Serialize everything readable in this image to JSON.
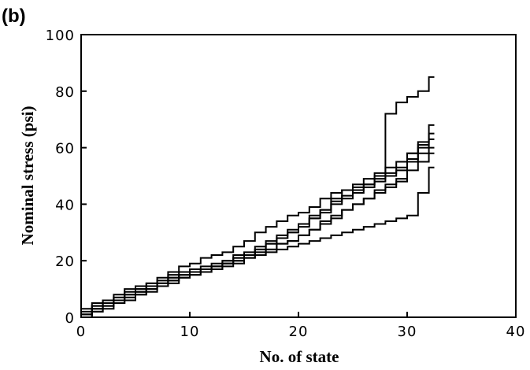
{
  "panel_label": "(b)",
  "chart_data": {
    "type": "line",
    "title": "",
    "xlabel": "No. of state",
    "ylabel": "Nominal stress (psi)",
    "xlim": [
      0,
      40
    ],
    "ylim": [
      0,
      100
    ],
    "xticks": [
      0,
      10,
      20,
      30,
      40
    ],
    "yticks": [
      0,
      20,
      40,
      60,
      80,
      100
    ],
    "grid": false,
    "legend": "none",
    "step": true,
    "x": [
      0,
      1,
      2,
      3,
      4,
      5,
      6,
      7,
      8,
      9,
      10,
      11,
      12,
      13,
      14,
      15,
      16,
      17,
      18,
      19,
      20,
      21,
      22,
      23,
      24,
      25,
      26,
      27,
      28,
      29,
      30,
      31,
      32
    ],
    "series": [
      {
        "values": [
          0,
          5,
          6,
          8,
          10,
          11,
          12,
          14,
          16,
          18,
          19,
          21,
          22,
          23,
          25,
          27,
          30,
          32,
          34,
          36,
          37,
          39,
          42,
          44,
          45,
          46,
          47,
          50,
          72,
          76,
          78,
          80,
          85
        ]
      },
      {
        "values": [
          3,
          4,
          5,
          7,
          8,
          10,
          11,
          12,
          14,
          15,
          16,
          17,
          18,
          20,
          21,
          22,
          23,
          24,
          26,
          27,
          29,
          31,
          34,
          36,
          38,
          40,
          42,
          44,
          46,
          48,
          58,
          62,
          68
        ]
      },
      {
        "values": [
          1,
          3,
          5,
          6,
          8,
          9,
          11,
          12,
          14,
          15,
          16,
          17,
          18,
          19,
          21,
          22,
          24,
          26,
          28,
          30,
          33,
          36,
          38,
          41,
          43,
          45,
          47,
          49,
          51,
          53,
          56,
          60,
          65
        ]
      },
      {
        "values": [
          2,
          4,
          6,
          7,
          9,
          10,
          12,
          13,
          15,
          16,
          17,
          18,
          19,
          20,
          22,
          23,
          25,
          27,
          29,
          31,
          33,
          35,
          38,
          42,
          45,
          47,
          49,
          51,
          53,
          55,
          58,
          61,
          63
        ]
      },
      {
        "values": [
          1,
          2,
          4,
          5,
          7,
          8,
          10,
          11,
          13,
          14,
          15,
          16,
          17,
          19,
          20,
          22,
          24,
          26,
          28,
          30,
          32,
          35,
          37,
          40,
          42,
          44,
          46,
          48,
          50,
          52,
          55,
          58,
          60
        ]
      },
      {
        "values": [
          0,
          2,
          3,
          5,
          6,
          8,
          9,
          11,
          12,
          14,
          15,
          16,
          17,
          18,
          19,
          21,
          22,
          24,
          26,
          27,
          29,
          31,
          33,
          35,
          38,
          40,
          42,
          45,
          47,
          49,
          52,
          55,
          58
        ]
      },
      {
        "values": [
          1,
          3,
          4,
          6,
          7,
          9,
          10,
          12,
          13,
          15,
          16,
          17,
          18,
          19,
          20,
          21,
          22,
          23,
          24,
          25,
          26,
          27,
          28,
          29,
          30,
          31,
          32,
          33,
          34,
          35,
          36,
          44,
          53
        ]
      }
    ]
  }
}
